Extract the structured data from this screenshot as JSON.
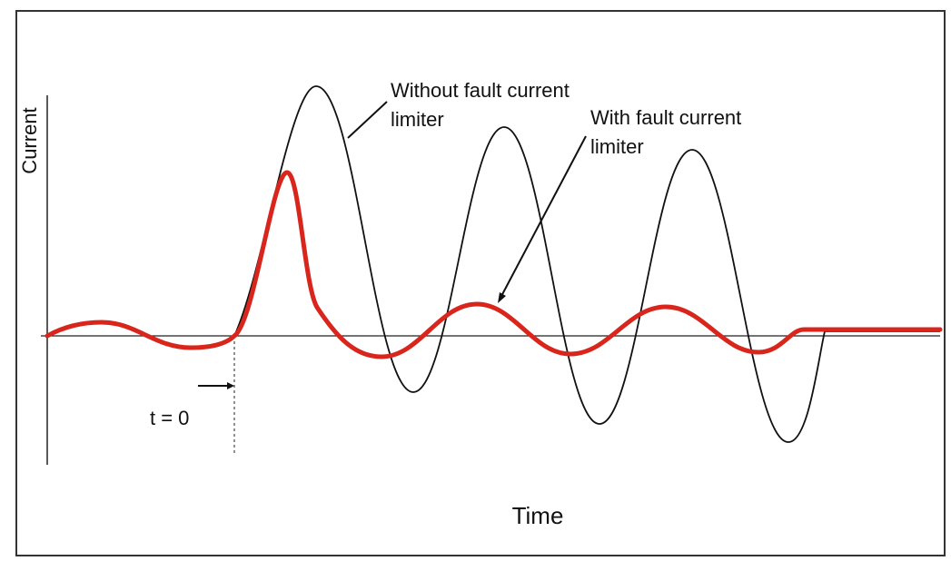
{
  "y_axis_label": "Current",
  "x_axis_label": "Time",
  "marker_label": "t = 0",
  "annotations": [
    {
      "lines": [
        "Without fault current",
        "limiter"
      ]
    },
    {
      "lines": [
        "With fault current",
        "limiter"
      ]
    }
  ]
}
